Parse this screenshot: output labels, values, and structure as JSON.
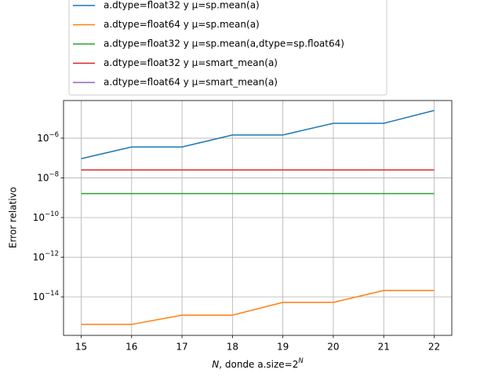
{
  "chart_data": {
    "type": "line",
    "xlabel": "N, donde a.size=2N",
    "ylabel": "Error relativo",
    "x": [
      15,
      16,
      17,
      18,
      19,
      20,
      21,
      22
    ],
    "series": [
      {
        "name": "a.dtype=float32 y μ=sp.mean(a)",
        "color": "#1f77b4",
        "values": [
          9.3e-08,
          3.6e-07,
          3.6e-07,
          1.45e-06,
          1.45e-06,
          5.6e-06,
          5.6e-06,
          2.5e-05
        ]
      },
      {
        "name": "a.dtype=float64 y μ=sp.mean(a)",
        "color": "#ff7f0e",
        "values": [
          4.1e-16,
          4.1e-16,
          1.2e-15,
          1.2e-15,
          5.3e-15,
          5.3e-15,
          2.1e-14,
          2.1e-14
        ]
      },
      {
        "name": "a.dtype=float32 y μ=sp.mean(a,dtype=sp.float64)",
        "color": "#2ca02c",
        "values": [
          1.6e-09,
          1.6e-09,
          1.6e-09,
          1.6e-09,
          1.6e-09,
          1.6e-09,
          1.6e-09,
          1.6e-09
        ]
      },
      {
        "name": "a.dtype=float32 y μ=smart_mean(a)",
        "color": "#d62728",
        "values": [
          2.5e-08,
          2.5e-08,
          2.5e-08,
          2.5e-08,
          2.5e-08,
          2.5e-08,
          2.5e-08,
          2.5e-08
        ]
      },
      {
        "name": "a.dtype=float64 y μ=smart_mean(a)",
        "color": "#9467bd",
        "values": [
          null,
          null,
          null,
          null,
          null,
          null,
          null,
          null
        ]
      }
    ],
    "xlim": [
      14.65,
      22.35
    ],
    "xticks": [
      15,
      16,
      17,
      18,
      19,
      20,
      21,
      22
    ],
    "ylim": [
      1.15e-16,
      7.9e-05
    ],
    "yscale": "log",
    "yticks": [
      {
        "value": 1e-14,
        "label": "10−14"
      },
      {
        "value": 1e-12,
        "label": "10−12"
      },
      {
        "value": 1e-10,
        "label": "10−10"
      },
      {
        "value": 1e-08,
        "label": "10−8"
      },
      {
        "value": 1e-06,
        "label": "10−6"
      }
    ],
    "grid": true,
    "legend": "above"
  }
}
